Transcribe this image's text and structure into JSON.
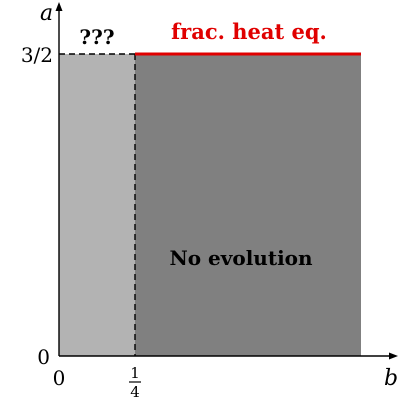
{
  "axes": {
    "x_label": "b",
    "y_label": "a",
    "x_origin_label": "0",
    "y_origin_label": "0",
    "x_tick_numerator": "1",
    "x_tick_denominator": "4",
    "y_tick_label": "3/2"
  },
  "regions": {
    "unknown_label": "???",
    "no_evolution_label": "No evolution",
    "heat_eq_label": "frac. heat eq."
  },
  "colors": {
    "light_region": "#b3b3b3",
    "dark_region": "#808080",
    "heat_eq_line": "#e00000",
    "axis": "#000000"
  }
}
